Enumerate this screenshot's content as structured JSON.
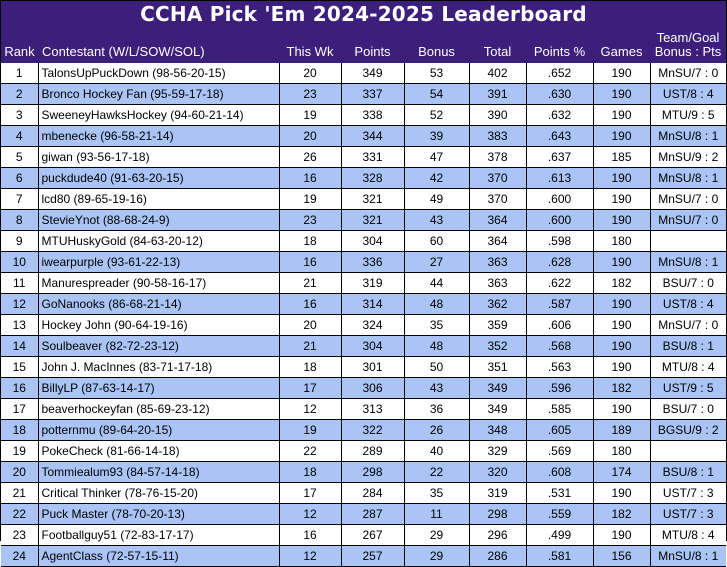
{
  "title": "CCHA Pick 'Em 2024-2025 Leaderboard",
  "columns": {
    "rank": "Rank",
    "contestant": "Contestant (W/L/SOW/SOL)",
    "this_wk": "This Wk",
    "points": "Points",
    "bonus": "Bonus",
    "total": "Total",
    "points_pct": "Points %",
    "games": "Games",
    "team_goal_line1": "Team/Goal",
    "team_goal_line2": "Bonus : Pts"
  },
  "rows": [
    {
      "rank": "1",
      "name": "TalonsUpPuckDown (98-56-20-15)",
      "this_wk": "20",
      "points": "349",
      "bonus": "53",
      "total": "402",
      "pct": ".652",
      "games": "190",
      "team_goal": "MnSU/7 : 0"
    },
    {
      "rank": "2",
      "name": "Bronco Hockey Fan (95-59-17-18)",
      "this_wk": "23",
      "points": "337",
      "bonus": "54",
      "total": "391",
      "pct": ".630",
      "games": "190",
      "team_goal": "UST/8 : 4"
    },
    {
      "rank": "3",
      "name": "SweeneyHawksHockey (94-60-21-14)",
      "this_wk": "19",
      "points": "338",
      "bonus": "52",
      "total": "390",
      "pct": ".632",
      "games": "190",
      "team_goal": "MTU/9 : 5"
    },
    {
      "rank": "4",
      "name": "mbenecke (96-58-21-14)",
      "this_wk": "20",
      "points": "344",
      "bonus": "39",
      "total": "383",
      "pct": ".643",
      "games": "190",
      "team_goal": "MnSU/8 : 1"
    },
    {
      "rank": "5",
      "name": "giwan (93-56-17-18)",
      "this_wk": "26",
      "points": "331",
      "bonus": "47",
      "total": "378",
      "pct": ".637",
      "games": "185",
      "team_goal": "MnSU/9 : 2"
    },
    {
      "rank": "6",
      "name": "puckdude40 (91-63-20-15)",
      "this_wk": "16",
      "points": "328",
      "bonus": "42",
      "total": "370",
      "pct": ".613",
      "games": "190",
      "team_goal": "MnSU/8 : 1"
    },
    {
      "rank": "7",
      "name": "lcd80 (89-65-19-16)",
      "this_wk": "19",
      "points": "321",
      "bonus": "49",
      "total": "370",
      "pct": ".600",
      "games": "190",
      "team_goal": "MnSU/7 : 0"
    },
    {
      "rank": "8",
      "name": "StevieYnot (88-68-24-9)",
      "this_wk": "23",
      "points": "321",
      "bonus": "43",
      "total": "364",
      "pct": ".600",
      "games": "190",
      "team_goal": "MnSU/7 : 0"
    },
    {
      "rank": "9",
      "name": "MTUHuskyGold (84-63-20-12)",
      "this_wk": "18",
      "points": "304",
      "bonus": "60",
      "total": "364",
      "pct": ".598",
      "games": "180",
      "team_goal": ""
    },
    {
      "rank": "10",
      "name": "iwearpurple (93-61-22-13)",
      "this_wk": "16",
      "points": "336",
      "bonus": "27",
      "total": "363",
      "pct": ".628",
      "games": "190",
      "team_goal": "MnSU/8 : 1"
    },
    {
      "rank": "11",
      "name": "Manurespreader (90-58-16-17)",
      "this_wk": "21",
      "points": "319",
      "bonus": "44",
      "total": "363",
      "pct": ".622",
      "games": "182",
      "team_goal": "BSU/7 : 0"
    },
    {
      "rank": "12",
      "name": "GoNanooks (86-68-21-14)",
      "this_wk": "16",
      "points": "314",
      "bonus": "48",
      "total": "362",
      "pct": ".587",
      "games": "190",
      "team_goal": "UST/8 : 4"
    },
    {
      "rank": "13",
      "name": "Hockey John (90-64-19-16)",
      "this_wk": "20",
      "points": "324",
      "bonus": "35",
      "total": "359",
      "pct": ".606",
      "games": "190",
      "team_goal": "MnSU/7 : 0"
    },
    {
      "rank": "14",
      "name": "Soulbeaver (82-72-23-12)",
      "this_wk": "21",
      "points": "304",
      "bonus": "48",
      "total": "352",
      "pct": ".568",
      "games": "190",
      "team_goal": "BSU/8 : 1"
    },
    {
      "rank": "15",
      "name": "John J. MacInnes (83-71-17-18)",
      "this_wk": "18",
      "points": "301",
      "bonus": "50",
      "total": "351",
      "pct": ".563",
      "games": "190",
      "team_goal": "MTU/8 : 4"
    },
    {
      "rank": "16",
      "name": "BillyLP (87-63-14-17)",
      "this_wk": "17",
      "points": "306",
      "bonus": "43",
      "total": "349",
      "pct": ".596",
      "games": "182",
      "team_goal": "UST/9 : 5"
    },
    {
      "rank": "17",
      "name": "beaverhockeyfan (85-69-23-12)",
      "this_wk": "12",
      "points": "313",
      "bonus": "36",
      "total": "349",
      "pct": ".585",
      "games": "190",
      "team_goal": "BSU/7 : 0"
    },
    {
      "rank": "18",
      "name": "potternmu (89-64-20-15)",
      "this_wk": "19",
      "points": "322",
      "bonus": "26",
      "total": "348",
      "pct": ".605",
      "games": "189",
      "team_goal": "BGSU/9 : 2"
    },
    {
      "rank": "19",
      "name": "PokeCheck (81-66-14-18)",
      "this_wk": "22",
      "points": "289",
      "bonus": "40",
      "total": "329",
      "pct": ".569",
      "games": "180",
      "team_goal": ""
    },
    {
      "rank": "20",
      "name": "Tommiealum93 (84-57-14-18)",
      "this_wk": "18",
      "points": "298",
      "bonus": "22",
      "total": "320",
      "pct": ".608",
      "games": "174",
      "team_goal": "BSU/8 : 1"
    },
    {
      "rank": "21",
      "name": "Critical Thinker (78-76-15-20)",
      "this_wk": "17",
      "points": "284",
      "bonus": "35",
      "total": "319",
      "pct": ".531",
      "games": "190",
      "team_goal": "UST/7 : 3"
    },
    {
      "rank": "22",
      "name": "Puck Master (78-70-20-13)",
      "this_wk": "12",
      "points": "287",
      "bonus": "11",
      "total": "298",
      "pct": ".559",
      "games": "182",
      "team_goal": "UST/7 : 3"
    },
    {
      "rank": "23",
      "name": "Footballguy51 (72-83-17-17)",
      "this_wk": "16",
      "points": "267",
      "bonus": "29",
      "total": "296",
      "pct": ".499",
      "games": "190",
      "team_goal": "MTU/8 : 4"
    },
    {
      "rank": "24",
      "name": "AgentClass (72-57-15-11)",
      "this_wk": "12",
      "points": "257",
      "bonus": "29",
      "total": "286",
      "pct": ".581",
      "games": "156",
      "team_goal": "MnSU/8 : 1"
    }
  ]
}
